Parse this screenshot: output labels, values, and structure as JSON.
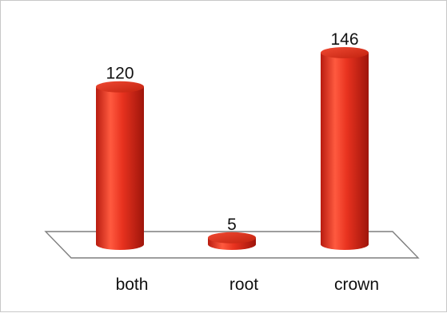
{
  "chart_data": {
    "type": "bar",
    "categories": [
      "both",
      "root",
      "crown"
    ],
    "values": [
      120,
      5,
      146
    ],
    "data_labels": [
      "120",
      "5",
      "146"
    ],
    "title": "",
    "xlabel": "",
    "ylabel": "",
    "ylim": [
      0,
      146
    ],
    "grid": false,
    "legend": "none",
    "style": "3d-cylinder",
    "colors": {
      "bar": "#e8321f",
      "bar_light": "#ff6a50",
      "bar_dark": "#a8180d",
      "floor_stroke": "#7f7f7f"
    }
  }
}
